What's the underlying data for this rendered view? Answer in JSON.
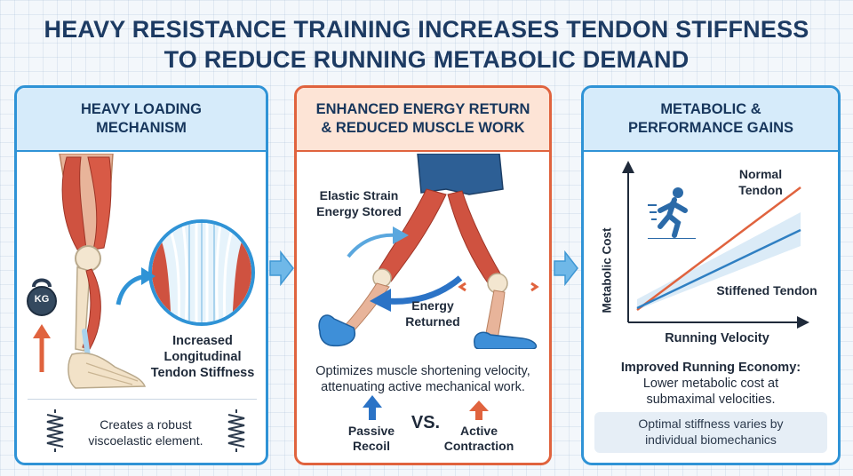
{
  "title": {
    "line1": "HEAVY RESISTANCE TRAINING INCREASES TENDON STIFFNESS",
    "line2": "TO REDUCE RUNNING METABOLIC DEMAND"
  },
  "panel1": {
    "heading_line1": "HEAVY LOADING",
    "heading_line2": "MECHANISM",
    "weight_label": "KG",
    "stiffness_line1": "Increased",
    "stiffness_line2": "Longitudinal",
    "stiffness_line3": "Tendon Stiffness",
    "caption_line1": "Creates a robust",
    "caption_line2": "viscoelastic element."
  },
  "panel2": {
    "heading_line1": "ENHANCED ENERGY RETURN",
    "heading_line2": "& REDUCED MUSCLE WORK",
    "stored_line1": "Elastic Strain",
    "stored_line2": "Energy Stored",
    "returned_line1": "Energy",
    "returned_line2": "Returned",
    "caption_line1": "Optimizes muscle shortening velocity,",
    "caption_line2": "attenuating active mechanical work.",
    "passive_line1": "Passive",
    "passive_line2": "Recoil",
    "vs_label": "VS.",
    "active_line1": "Active",
    "active_line2": "Contraction"
  },
  "panel3": {
    "heading_line1": "METABOLIC &",
    "heading_line2": "PERFORMANCE GAINS",
    "y_axis_label": "Metabolic Cost",
    "x_axis_label": "Running Velocity",
    "normal_line1": "Normal",
    "normal_line2": "Tendon",
    "stiffened_label": "Stiffened Tendon",
    "economy_heading": "Improved Running Economy:",
    "economy_line1": "Lower metabolic cost at",
    "economy_line2": "submaximal velocities.",
    "footnote_line1": "Optimal stiffness varies by",
    "footnote_line2": "individual biomechanics"
  },
  "colors": {
    "blue_accent": "#2f93d6",
    "orange_accent": "#e0633e",
    "title_navy": "#1d3b63",
    "muscle_red": "#c94a3a"
  },
  "icons": {
    "weight": "kettlebell-icon",
    "spring": "spring-icon",
    "runner": "runner-icon",
    "flow": "right-arrow-icon"
  }
}
